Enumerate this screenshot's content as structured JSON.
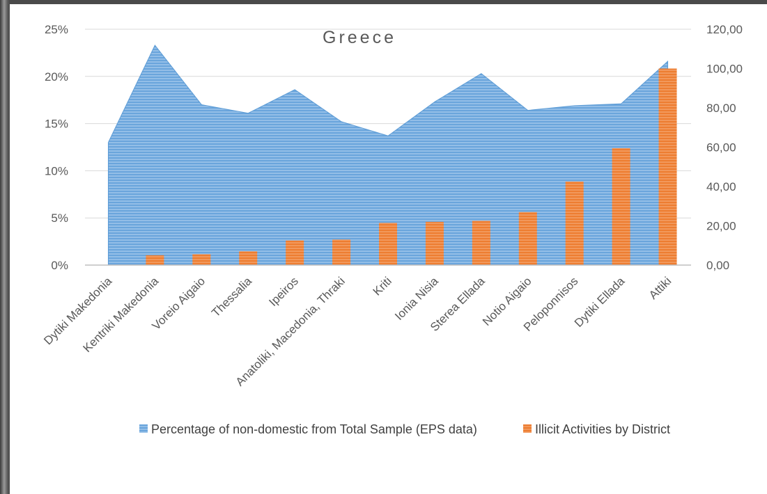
{
  "chart_data": {
    "type": "area+bar",
    "title": "Greece",
    "categories": [
      "Dytiki Makedonia",
      "Kentriki Makedonia",
      "Voreio Aigaio",
      "Thessalia",
      "Ipeiros",
      "Anatoliki, Macedonia, Thraki",
      "Kriti",
      "Ionia Nisia",
      "Sterea Ellada",
      "Notio Aigaio",
      "Peloponnisos",
      "Dytiki Ellada",
      "Attiki"
    ],
    "series": [
      {
        "name": "Percentage of non-domestic from Total Sample (EPS data)",
        "type": "area",
        "axis": "left",
        "color": "#5b9bd5",
        "values": [
          0.13,
          0.233,
          0.17,
          0.161,
          0.186,
          0.152,
          0.137,
          0.173,
          0.203,
          0.164,
          0.169,
          0.171,
          0.216
        ]
      },
      {
        "name": "Illicit Activities by District",
        "type": "bar",
        "axis": "right",
        "color": "#ed7d31",
        "values": [
          0,
          5,
          5.5,
          7,
          12.5,
          13,
          21.5,
          22,
          22.5,
          27,
          42.5,
          59.5,
          100
        ]
      }
    ],
    "left_axis": {
      "ylim": [
        0,
        0.25
      ],
      "ticks": [
        "0%",
        "5%",
        "10%",
        "15%",
        "20%",
        "25%"
      ]
    },
    "right_axis": {
      "ylim": [
        0,
        120
      ],
      "ticks": [
        "0,00",
        "20,00",
        "40,00",
        "60,00",
        "80,00",
        "100,00",
        "120,00"
      ]
    },
    "grid": true,
    "legend_position": "bottom"
  }
}
